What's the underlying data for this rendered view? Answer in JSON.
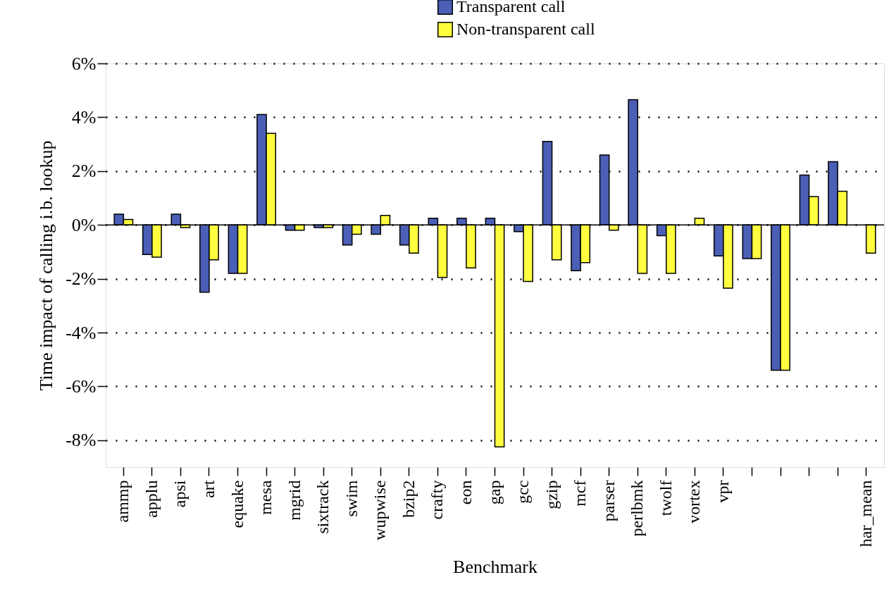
{
  "chart_data": {
    "type": "bar",
    "xlabel": "Benchmark",
    "ylabel": "Time impact of calling i.b. lookup",
    "categories": [
      "ammp",
      "applu",
      "apsi",
      "art",
      "equake",
      "mesa",
      "mgrid",
      "sixtrack",
      "swim",
      "wupwise",
      "bzip2",
      "crafty",
      "eon",
      "gap",
      "gcc",
      "gzip",
      "mcf",
      "parser",
      "perlbmk",
      "twolf",
      "vortex",
      "vpr",
      null,
      null,
      null,
      null,
      "har_mean"
    ],
    "series": [
      {
        "name": "Transparent call",
        "color": "#4a5fb5",
        "values": [
          0.4,
          -1.1,
          0.4,
          -2.5,
          -1.8,
          4.1,
          -0.2,
          -0.1,
          -0.75,
          -0.35,
          -0.75,
          0.25,
          0.25,
          0.25,
          -0.25,
          3.1,
          -1.7,
          2.6,
          4.65,
          -0.4,
          null,
          -1.15,
          -1.25,
          -5.4,
          1.85,
          2.35,
          null
        ]
      },
      {
        "name": "Non-transparent call",
        "color": "#ffff40",
        "values": [
          0.2,
          -1.2,
          -0.1,
          -1.3,
          -1.8,
          3.4,
          -0.2,
          -0.1,
          -0.35,
          0.35,
          -1.05,
          -1.95,
          -1.6,
          -8.25,
          -2.1,
          -1.3,
          -1.4,
          -0.2,
          -1.8,
          -1.8,
          0.25,
          -2.35,
          -1.25,
          -5.4,
          1.05,
          1.25,
          -1.05
        ]
      }
    ],
    "ylim": [
      -9,
      6
    ],
    "yticks": [
      {
        "value": -8,
        "label": "-8%"
      },
      {
        "value": -6,
        "label": "-6%"
      },
      {
        "value": -4,
        "label": "-4%"
      },
      {
        "value": -2,
        "label": "-2%"
      },
      {
        "value": 0,
        "label": "0%"
      },
      {
        "value": 2,
        "label": "2%"
      },
      {
        "value": 4,
        "label": "4%"
      },
      {
        "value": 6,
        "label": "6%"
      }
    ],
    "grid": "y",
    "legend": "top",
    "ref_lines": [
      {
        "axis": "y",
        "value": 0,
        "label": null
      }
    ]
  }
}
